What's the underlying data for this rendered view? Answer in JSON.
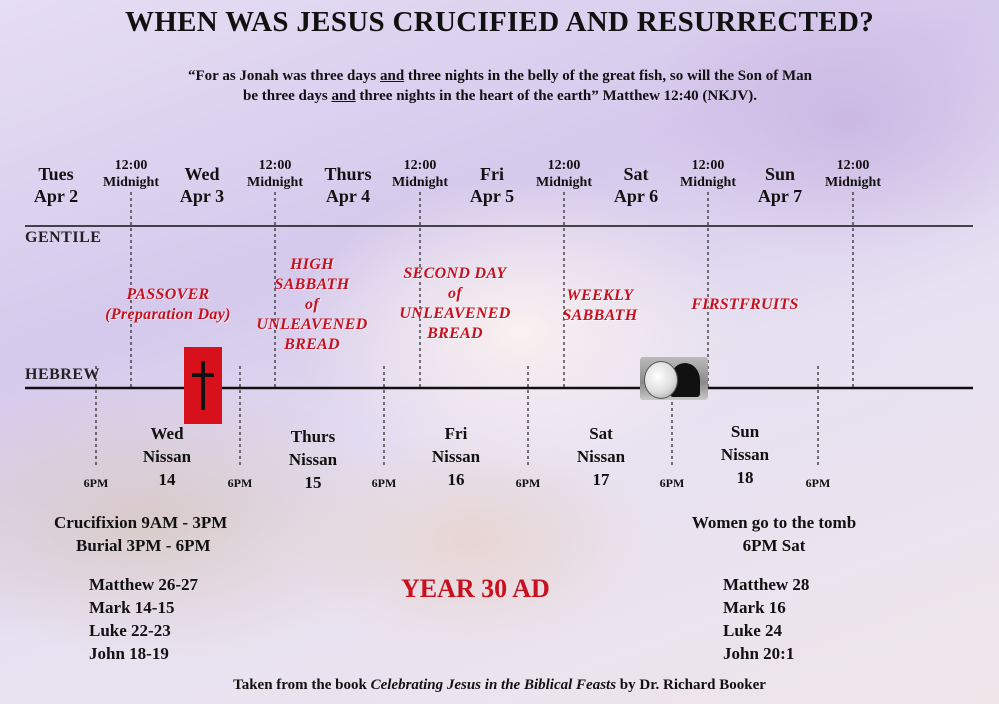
{
  "title": "WHEN WAS JESUS CRUCIFIED AND RESURRECTED?",
  "quote": {
    "line1_a": "“For as Jonah was three days ",
    "line1_and": "and",
    "line1_b": " three nights in the belly of the great fish, so will the Son of Man",
    "line2_a": "be three days ",
    "line2_and": "and",
    "line2_b": " three nights in the heart of the earth” Matthew 12:40 (NKJV)."
  },
  "days": [
    {
      "name": "Tues",
      "date": "Apr 2"
    },
    {
      "name": "Wed",
      "date": "Apr 3"
    },
    {
      "name": "Thurs",
      "date": "Apr 4"
    },
    {
      "name": "Fri",
      "date": "Apr 5"
    },
    {
      "name": "Sat",
      "date": "Apr 6"
    },
    {
      "name": "Sun",
      "date": "Apr 7"
    }
  ],
  "midnight": {
    "time": "12:00",
    "label": "Midnight"
  },
  "rows": {
    "gentile": "GENTILE",
    "hebrew": "HEBREW"
  },
  "feasts": [
    {
      "lines": [
        "PASSOVER",
        "(Preparation Day)"
      ]
    },
    {
      "lines": [
        "HIGH",
        "SABBATH",
        "of",
        "UNLEAVENED",
        "BREAD"
      ]
    },
    {
      "lines": [
        "SECOND DAY",
        "of",
        "UNLEAVENED",
        "BREAD"
      ]
    },
    {
      "lines": [
        "WEEKLY",
        "SABBATH"
      ]
    },
    {
      "lines": [
        "FIRSTFRUITS"
      ]
    }
  ],
  "hebrew_days": [
    {
      "day": "Wed",
      "month": "Nissan",
      "num": "14"
    },
    {
      "day": "Thurs",
      "month": "Nissan",
      "num": "15"
    },
    {
      "day": "Fri",
      "month": "Nissan",
      "num": "16"
    },
    {
      "day": "Sat",
      "month": "Nissan",
      "num": "17"
    },
    {
      "day": "Sun",
      "month": "Nissan",
      "num": "18"
    }
  ],
  "six_pm": "6PM",
  "left_info": {
    "crucifixion": "Crucifixion 9AM - 3PM",
    "burial": "Burial 3PM - 6PM",
    "refs": [
      "Matthew 26-27",
      "Mark 14-15",
      "Luke 22-23",
      "John 18-19"
    ]
  },
  "right_info": {
    "women": "Women go to the tomb",
    "time": "6PM Sat",
    "refs": [
      "Matthew 28",
      "Mark 16",
      "Luke 24",
      "John 20:1"
    ]
  },
  "year": "YEAR 30 AD",
  "credit": {
    "prefix": "Taken from the book ",
    "book": "Celebrating Jesus in the Biblical Feasts",
    "suffix": " by Dr. Richard Booker"
  },
  "colors": {
    "feast_red": "#c8101e",
    "cross_box": "#d8101c",
    "line": "#111111"
  },
  "icons": {
    "cross": "cross-icon",
    "tomb": "empty-tomb-icon"
  }
}
